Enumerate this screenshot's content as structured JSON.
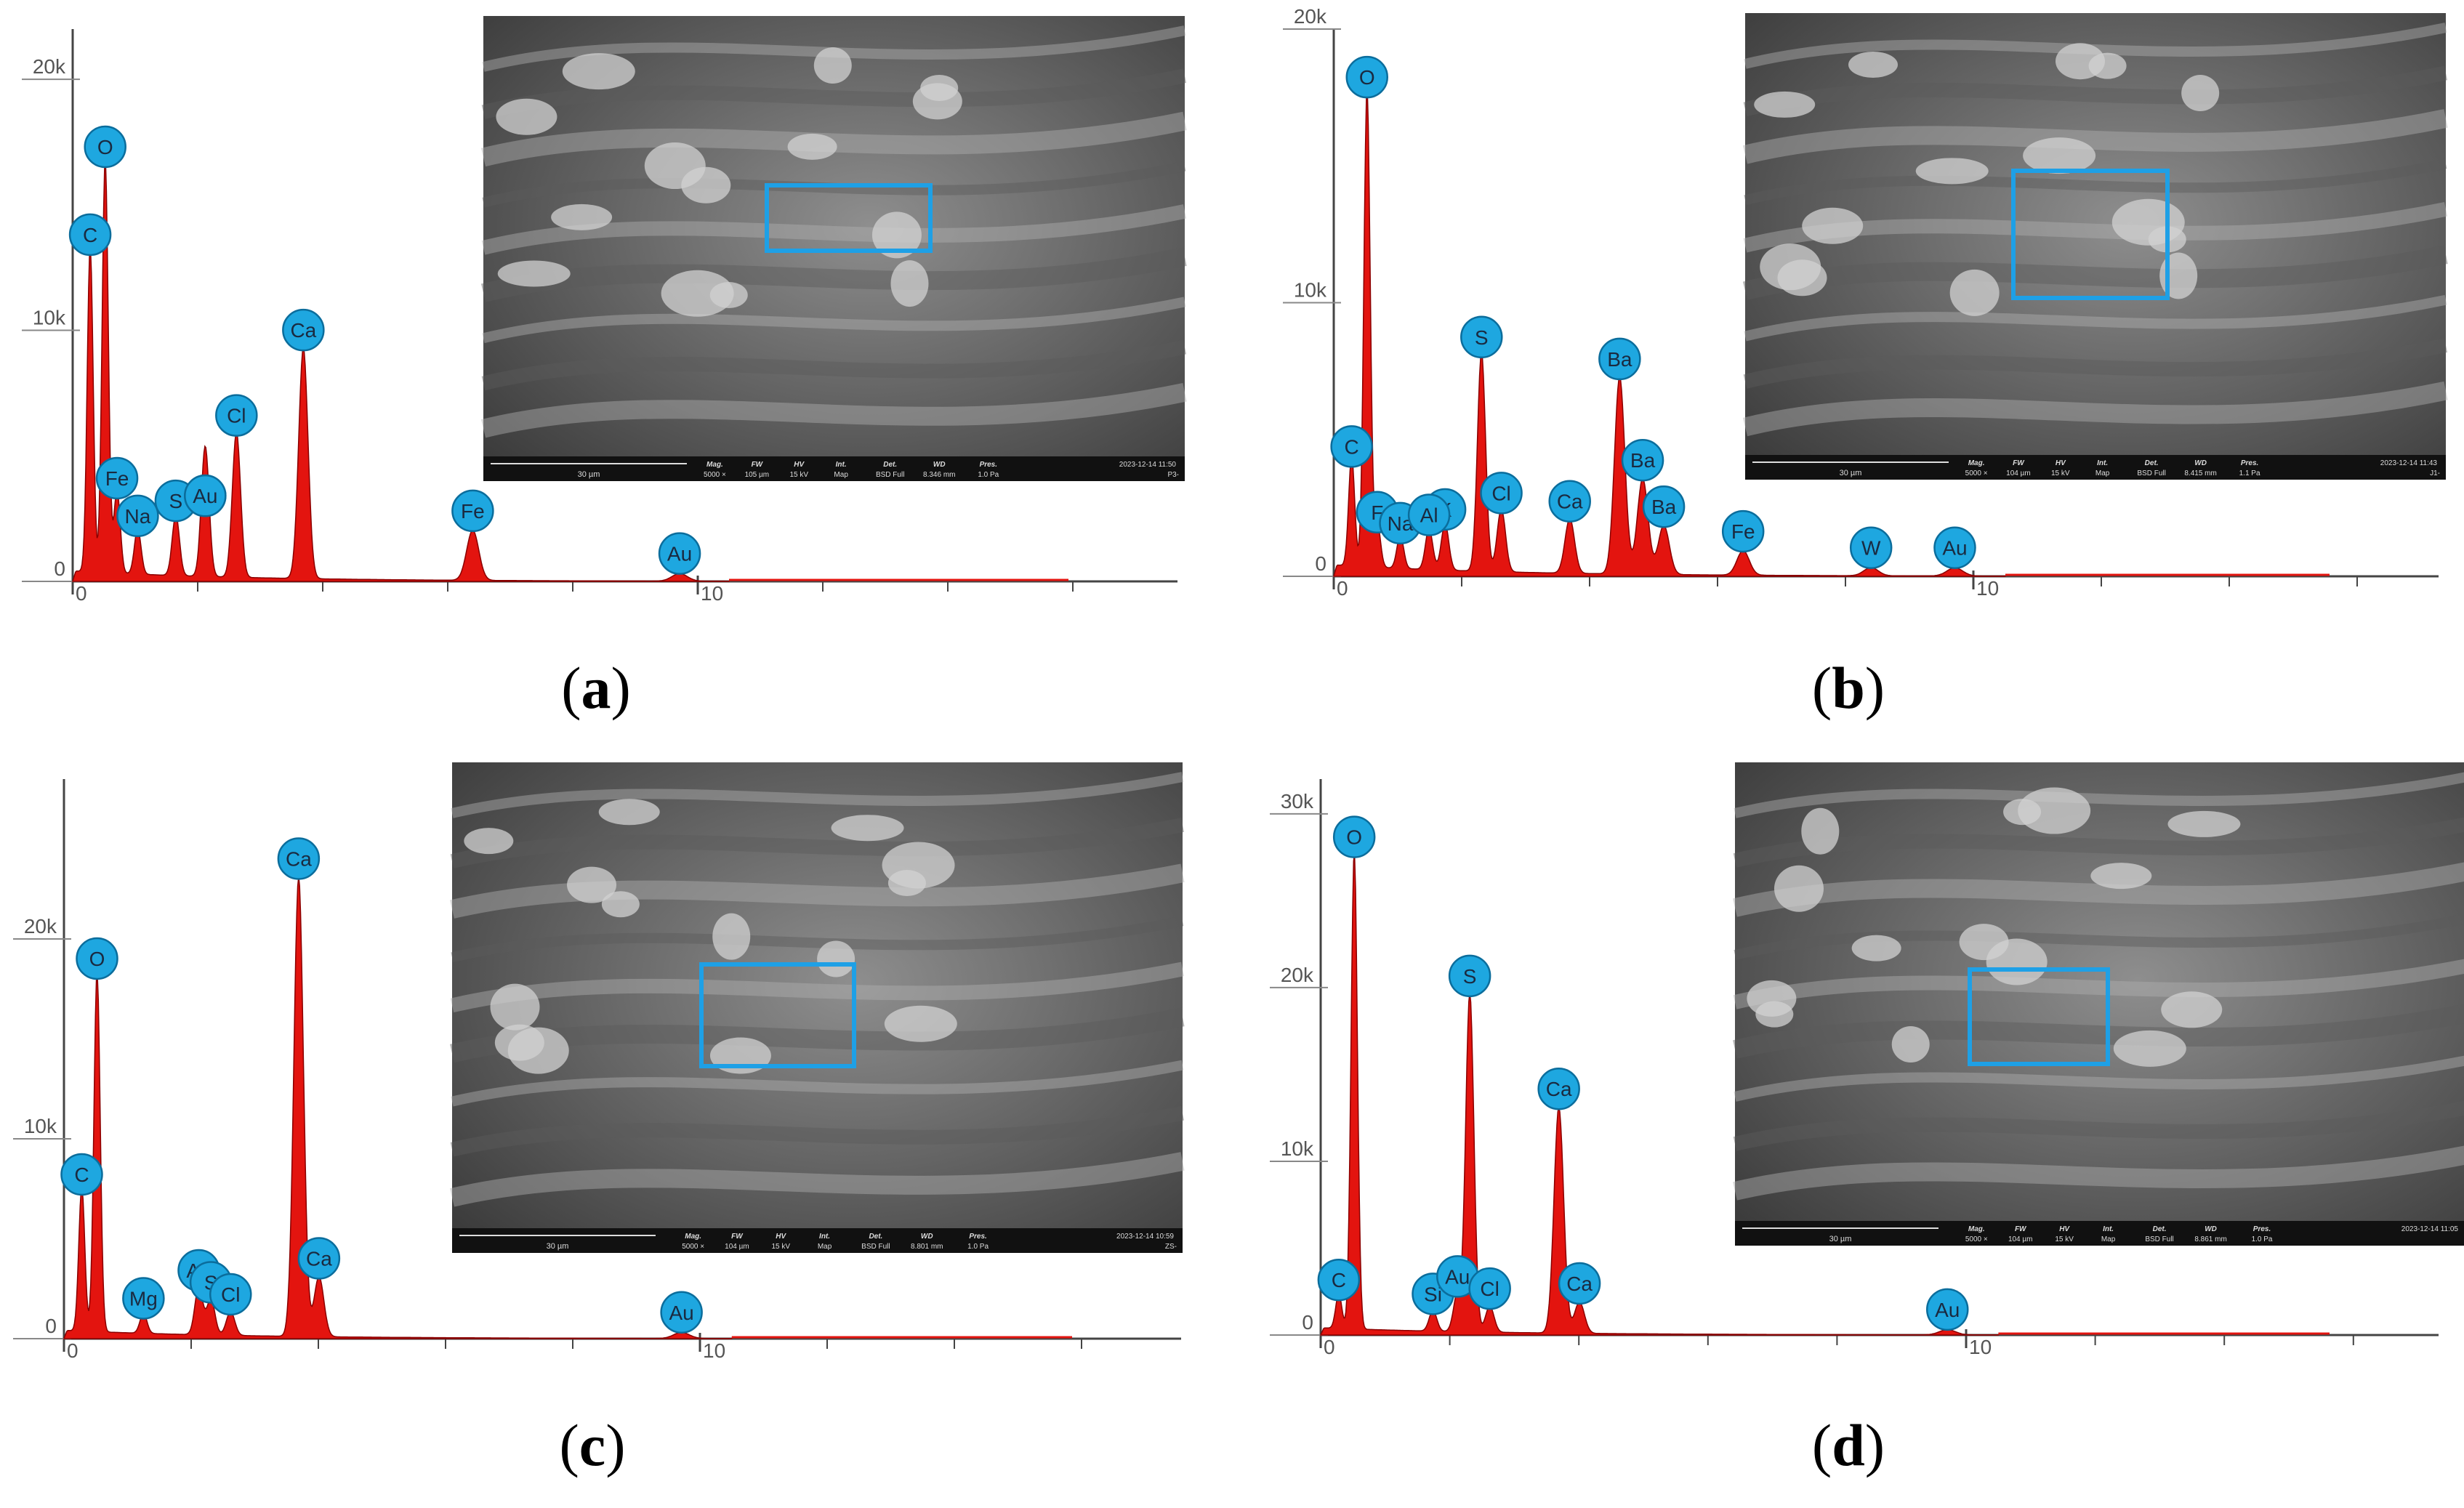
{
  "chart_data": [
    {
      "type": "area",
      "panel_label": "a",
      "x_ticks": [
        "0",
        "10"
      ],
      "y_ticks": [
        "0",
        "10k",
        "20k"
      ],
      "xlim": [
        0,
        20
      ],
      "ylim": [
        0,
        22000
      ],
      "peaks": [
        {
          "element": "C",
          "x": 0.28,
          "y": 13000
        },
        {
          "element": "O",
          "x": 0.52,
          "y": 16500
        },
        {
          "element": "Fe",
          "x": 0.71,
          "y": 3300
        },
        {
          "element": "Na",
          "x": 1.04,
          "y": 1800
        },
        {
          "element": "S",
          "x": 1.65,
          "y": 2400
        },
        {
          "element": "Au",
          "x": 2.12,
          "y": 2600
        },
        {
          "element": "Au",
          "x": 2.12,
          "y": 2600
        },
        {
          "element": "Cl",
          "x": 2.62,
          "y": 5800
        },
        {
          "element": "Ca",
          "x": 3.69,
          "y": 9200
        },
        {
          "element": "Fe",
          "x": 6.4,
          "y": 2000
        },
        {
          "element": "Au",
          "x": 9.71,
          "y": 300
        }
      ],
      "inset": {
        "scale_bar": "30 µm",
        "meta_headers": [
          "Mag.",
          "FW",
          "HV",
          "Int.",
          "Det.",
          "WD",
          "Pres."
        ],
        "meta_values": [
          "5000 ×",
          "105 µm",
          "15 kV",
          "Map",
          "BSD Full",
          "8.346 mm",
          "1.0 Pa"
        ],
        "timestamp": "2023-12-14 11:50",
        "sample_id": "P3-"
      }
    },
    {
      "type": "area",
      "panel_label": "b",
      "x_ticks": [
        "0",
        "10"
      ],
      "y_ticks": [
        "0",
        "10k",
        "20k"
      ],
      "xlim": [
        0,
        20
      ],
      "ylim": [
        0,
        20000
      ],
      "peaks": [
        {
          "element": "C",
          "x": 0.28,
          "y": 4000
        },
        {
          "element": "O",
          "x": 0.52,
          "y": 17500
        },
        {
          "element": "F",
          "x": 0.68,
          "y": 1600
        },
        {
          "element": "Na",
          "x": 1.04,
          "y": 1200
        },
        {
          "element": "K",
          "x": 1.74,
          "y": 1700
        },
        {
          "element": "Al",
          "x": 1.49,
          "y": 1500
        },
        {
          "element": "Cl",
          "x": 2.62,
          "y": 2300
        },
        {
          "element": "S",
          "x": 2.31,
          "y": 8000
        },
        {
          "element": "Ca",
          "x": 3.69,
          "y": 2000
        },
        {
          "element": "Ba",
          "x": 4.47,
          "y": 7200
        },
        {
          "element": "Ba",
          "x": 4.83,
          "y": 3500
        },
        {
          "element": "Ba",
          "x": 5.16,
          "y": 1800
        },
        {
          "element": "Fe",
          "x": 6.4,
          "y": 900
        },
        {
          "element": "W",
          "x": 8.4,
          "y": 300
        },
        {
          "element": "Au",
          "x": 9.71,
          "y": 300
        }
      ],
      "inset": {
        "scale_bar": "30 µm",
        "meta_headers": [
          "Mag.",
          "FW",
          "HV",
          "Int.",
          "Det.",
          "WD",
          "Pres."
        ],
        "meta_values": [
          "5000 ×",
          "104 µm",
          "15 kV",
          "Map",
          "BSD Full",
          "8.415 mm",
          "1.1 Pa"
        ],
        "timestamp": "2023-12-14 11:43",
        "sample_id": "J1-"
      }
    },
    {
      "type": "area",
      "panel_label": "c",
      "x_ticks": [
        "0",
        "10"
      ],
      "y_ticks": [
        "0",
        "10k",
        "20k"
      ],
      "xlim": [
        0,
        20
      ],
      "ylim": [
        0,
        28000
      ],
      "peaks": [
        {
          "element": "C",
          "x": 0.28,
          "y": 7200
        },
        {
          "element": "O",
          "x": 0.52,
          "y": 18000
        },
        {
          "element": "Mg",
          "x": 1.25,
          "y": 1000
        },
        {
          "element": "Au",
          "x": 2.12,
          "y": 2400
        },
        {
          "element": "S",
          "x": 2.31,
          "y": 1800
        },
        {
          "element": "Cl",
          "x": 2.62,
          "y": 1200
        },
        {
          "element": "Ca",
          "x": 3.69,
          "y": 23000
        },
        {
          "element": "Ca",
          "x": 4.01,
          "y": 3000
        },
        {
          "element": "Au",
          "x": 9.71,
          "y": 300
        }
      ],
      "inset": {
        "scale_bar": "30 µm",
        "meta_headers": [
          "Mag.",
          "FW",
          "HV",
          "Int.",
          "Det.",
          "WD",
          "Pres."
        ],
        "meta_values": [
          "5000 ×",
          "104 µm",
          "15 kV",
          "Map",
          "BSD Full",
          "8.801 mm",
          "1.0 Pa"
        ],
        "timestamp": "2023-12-14 10:59",
        "sample_id": "ZS-"
      }
    },
    {
      "type": "area",
      "panel_label": "d",
      "x_ticks": [
        "0",
        "10"
      ],
      "y_ticks": [
        "0",
        "10k",
        "20k",
        "30k"
      ],
      "xlim": [
        0,
        20
      ],
      "ylim": [
        0,
        32000
      ],
      "peaks": [
        {
          "element": "C",
          "x": 0.28,
          "y": 2000
        },
        {
          "element": "O",
          "x": 0.52,
          "y": 27500
        },
        {
          "element": "Si",
          "x": 1.74,
          "y": 1200
        },
        {
          "element": "Au",
          "x": 2.12,
          "y": 2200
        },
        {
          "element": "S",
          "x": 2.31,
          "y": 19500
        },
        {
          "element": "Cl",
          "x": 2.62,
          "y": 1500
        },
        {
          "element": "Ca",
          "x": 3.69,
          "y": 13000
        },
        {
          "element": "Ca",
          "x": 4.01,
          "y": 1800
        },
        {
          "element": "Au",
          "x": 9.71,
          "y": 300
        }
      ],
      "inset": {
        "scale_bar": "30 µm",
        "meta_headers": [
          "Mag.",
          "FW",
          "HV",
          "Int.",
          "Det.",
          "WD",
          "Pres."
        ],
        "meta_values": [
          "5000 ×",
          "104 µm",
          "15 kV",
          "Map",
          "BSD Full",
          "8.861 mm",
          "1.0 Pa"
        ],
        "timestamp": "2023-12-14 11:05",
        "sample_id": ""
      }
    }
  ],
  "colors": {
    "spectrum_fill": "#e3140f",
    "spectrum_line": "#8a0000",
    "label_fill": "#1ea7e0",
    "label_stroke": "#0b6d9c",
    "highlight_box": "#1ea0e6",
    "axis": "#444444"
  }
}
